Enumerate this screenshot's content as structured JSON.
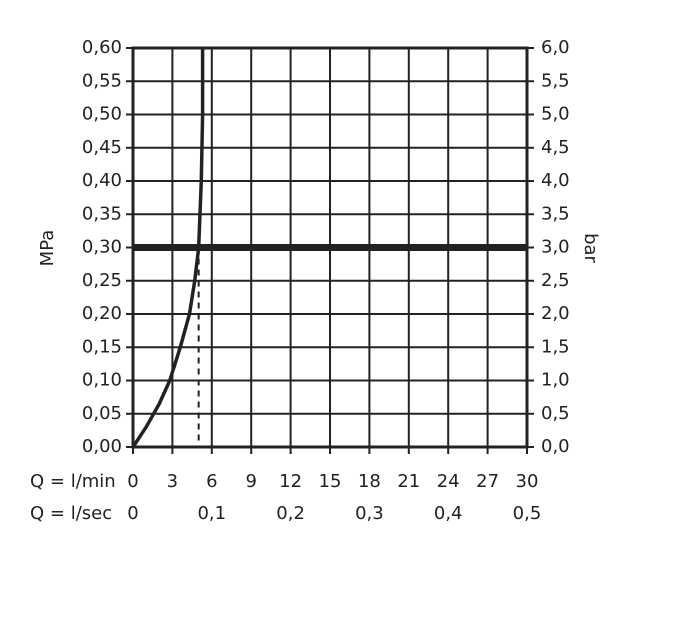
{
  "chart_data": {
    "type": "line",
    "y_label": "MPa",
    "y2_label": "bar",
    "x_row_labels": [
      "Q = l/min",
      "Q = l/sec"
    ],
    "x": [
      0,
      1,
      2,
      2.8,
      3.6,
      4.3,
      4.7,
      5.0,
      5.2,
      5.3,
      5.3
    ],
    "series": [
      {
        "color": "#222222",
        "values": [
          0,
          0.03,
          0.065,
          0.1,
          0.15,
          0.2,
          0.25,
          0.3,
          0.4,
          0.5,
          0.6
        ]
      }
    ],
    "hline": 0.3,
    "vline": 5.0,
    "xlim": [
      0,
      30
    ],
    "xticks": [
      0,
      3,
      6,
      9,
      12,
      15,
      18,
      21,
      24,
      27,
      30
    ],
    "x2lim": [
      0,
      0.5
    ],
    "x2ticks": [
      0,
      {
        "value": 0.1,
        "label": "0,1"
      },
      {
        "value": 0.2,
        "label": "0,2"
      },
      {
        "value": 0.3,
        "label": "0,3"
      },
      {
        "value": 0.4,
        "label": "0,4"
      },
      {
        "value": 0.5,
        "label": "0,5"
      }
    ],
    "ylim": [
      0,
      0.6
    ],
    "yticks": [
      {
        "value": 0,
        "label": "0,00"
      },
      {
        "value": 0.05,
        "label": "0,05"
      },
      {
        "value": 0.1,
        "label": "0,10"
      },
      {
        "value": 0.15,
        "label": "0,15"
      },
      {
        "value": 0.2,
        "label": "0,20"
      },
      {
        "value": 0.25,
        "label": "0,25"
      },
      {
        "value": 0.3,
        "label": "0,30"
      },
      {
        "value": 0.35,
        "label": "0,35"
      },
      {
        "value": 0.4,
        "label": "0,40"
      },
      {
        "value": 0.45,
        "label": "0,45"
      },
      {
        "value": 0.5,
        "label": "0,50"
      },
      {
        "value": 0.55,
        "label": "0,55"
      },
      {
        "value": 0.6,
        "label": "0,60"
      }
    ],
    "y2lim": [
      0,
      6
    ],
    "y2ticks": [
      {
        "value": 0,
        "label": "0,0"
      },
      {
        "value": 0.5,
        "label": "0,5"
      },
      {
        "value": 1,
        "label": "1,0"
      },
      {
        "value": 1.5,
        "label": "1,5"
      },
      {
        "value": 2,
        "label": "2,0"
      },
      {
        "value": 2.5,
        "label": "2,5"
      },
      {
        "value": 3,
        "label": "3,0"
      },
      {
        "value": 3.5,
        "label": "3,5"
      },
      {
        "value": 4,
        "label": "4,0"
      },
      {
        "value": 4.5,
        "label": "4,5"
      },
      {
        "value": 5,
        "label": "5,0"
      },
      {
        "value": 5.5,
        "label": "5,5"
      },
      {
        "value": 6,
        "label": "6,0"
      }
    ],
    "grid": true
  }
}
